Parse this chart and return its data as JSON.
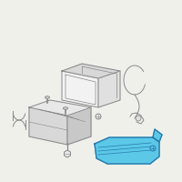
{
  "bg_color": "#f0f0eb",
  "tray_fill": "#5bc8e8",
  "tray_stroke": "#2a7aaa",
  "part_stroke": "#888888",
  "part_fill": "#ffffff",
  "figsize": [
    2.0,
    2.0
  ],
  "dpi": 100
}
